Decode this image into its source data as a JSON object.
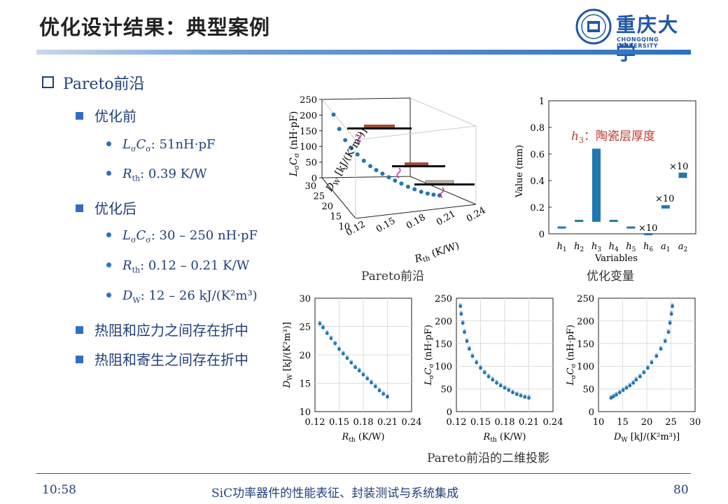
{
  "slide": {
    "title": "优化设计结果：典型案例",
    "logo": {
      "cn": "重庆大学",
      "en": "CHONGQING UNIVERSITY"
    },
    "time": "10:58",
    "footer": "SiC功率器件的性能表征、封装测试与系统集成",
    "page": "80"
  },
  "bullets": {
    "l0": "Pareto前沿",
    "before": "优化前",
    "before_lc": ": 51nH·pF",
    "before_rth": ": 0.39 K/W",
    "after": "优化后",
    "after_lc": ": 30 – 250 nH·pF",
    "after_rth": ": 0.12 – 0.21 K/W",
    "after_dw": ": 12 – 26 kJ/(K²m³)",
    "tradeoff1": "热阻和应力之间存在折中",
    "tradeoff2": "热阻和寄生之间存在折中"
  },
  "captions": {
    "pareto3d": "Pareto前沿",
    "vars": "优化变量",
    "proj": "Pareto前沿的二维投影"
  },
  "colors": {
    "accent": "#2e6fc4",
    "data": "#1f77b4",
    "text": "#1f3f7a",
    "annotation": "#c0392b"
  },
  "chart_data": [
    {
      "id": "pareto3d",
      "type": "scatter",
      "title": "",
      "xlabel": "R_th (K/W)",
      "ylabel": "D_W [kJ/(K²m³)]",
      "zlabel": "L_σ C_σ (nH·pF)",
      "x_ticks": [
        "0.12",
        "0.15",
        "0.18",
        "0.21",
        "0.24"
      ],
      "y_ticks": [
        "10",
        "15",
        "20",
        "25",
        "30"
      ],
      "z_ticks": [
        "0",
        "50",
        "100",
        "150",
        "200",
        "250"
      ],
      "points": [
        {
          "rth": 0.125,
          "dw": 25.5,
          "lc": 230
        },
        {
          "rth": 0.13,
          "dw": 24.5,
          "lc": 190
        },
        {
          "rth": 0.135,
          "dw": 23.5,
          "lc": 160
        },
        {
          "rth": 0.14,
          "dw": 22.5,
          "lc": 140
        },
        {
          "rth": 0.145,
          "dw": 21.5,
          "lc": 125
        },
        {
          "rth": 0.15,
          "dw": 20.5,
          "lc": 110
        },
        {
          "rth": 0.155,
          "dw": 19.5,
          "lc": 98
        },
        {
          "rth": 0.16,
          "dw": 18.8,
          "lc": 88
        },
        {
          "rth": 0.165,
          "dw": 18.0,
          "lc": 80
        },
        {
          "rth": 0.17,
          "dw": 17.2,
          "lc": 72
        },
        {
          "rth": 0.175,
          "dw": 16.5,
          "lc": 64
        },
        {
          "rth": 0.18,
          "dw": 15.8,
          "lc": 57
        },
        {
          "rth": 0.185,
          "dw": 15.0,
          "lc": 50
        },
        {
          "rth": 0.19,
          "dw": 14.3,
          "lc": 44
        },
        {
          "rth": 0.195,
          "dw": 13.6,
          "lc": 38
        },
        {
          "rth": 0.2,
          "dw": 13.0,
          "lc": 34
        },
        {
          "rth": 0.205,
          "dw": 12.6,
          "lc": 31
        },
        {
          "rth": 0.21,
          "dw": 12.2,
          "lc": 29
        }
      ]
    },
    {
      "id": "vars",
      "type": "bar",
      "xlabel": "Variables",
      "ylabel": "Value (mm)",
      "ylim": [
        0,
        1
      ],
      "y_ticks": [
        "0",
        "0.2",
        "0.4",
        "0.6",
        "0.8",
        "1"
      ],
      "categories": [
        "h1",
        "h2",
        "h3",
        "h4",
        "h5",
        "h6",
        "a1",
        "a2"
      ],
      "bars": [
        {
          "lo": 0.045,
          "hi": 0.055
        },
        {
          "lo": 0.095,
          "hi": 0.105
        },
        {
          "lo": 0.09,
          "hi": 0.64
        },
        {
          "lo": 0.095,
          "hi": 0.105
        },
        {
          "lo": 0.045,
          "hi": 0.055
        },
        {
          "lo": 0.0,
          "hi": 0.005
        },
        {
          "lo": 0.19,
          "hi": 0.215
        },
        {
          "lo": 0.42,
          "hi": 0.46
        }
      ],
      "annotation": "陶瓷层厚度",
      "annotation_var": "h",
      "annotation_sub": "3",
      "scale_marks": [
        "×10",
        "×10",
        "×10"
      ]
    },
    {
      "id": "proj1",
      "type": "scatter",
      "xlabel": "R_th (K/W)",
      "ylabel": "D_W [kJ/(K²m³)]",
      "xlim": [
        0.12,
        0.24
      ],
      "ylim": [
        10,
        30
      ],
      "x_ticks": [
        "0.12",
        "0.15",
        "0.18",
        "0.21",
        "0.24"
      ],
      "y_ticks": [
        "10",
        "15",
        "20",
        "25",
        "30"
      ],
      "points": [
        [
          0.126,
          25.5
        ],
        [
          0.13,
          24.8
        ],
        [
          0.135,
          23.8
        ],
        [
          0.14,
          22.9
        ],
        [
          0.145,
          22.0
        ],
        [
          0.15,
          21.0
        ],
        [
          0.155,
          20.2
        ],
        [
          0.16,
          19.4
        ],
        [
          0.165,
          18.6
        ],
        [
          0.17,
          17.8
        ],
        [
          0.175,
          17.2
        ],
        [
          0.18,
          16.5
        ],
        [
          0.185,
          15.8
        ],
        [
          0.19,
          15.1
        ],
        [
          0.195,
          14.4
        ],
        [
          0.2,
          13.7
        ],
        [
          0.205,
          13.1
        ],
        [
          0.21,
          12.6
        ]
      ]
    },
    {
      "id": "proj2",
      "type": "scatter",
      "xlabel": "R_th (K/W)",
      "ylabel": "L_σ C_σ (nH·pF)",
      "xlim": [
        0.12,
        0.24
      ],
      "ylim": [
        0,
        250
      ],
      "x_ticks": [
        "0.12",
        "0.15",
        "0.18",
        "0.21",
        "0.24"
      ],
      "y_ticks": [
        "0",
        "50",
        "100",
        "150",
        "200",
        "250"
      ],
      "points": [
        [
          0.125,
          232
        ],
        [
          0.126,
          215
        ],
        [
          0.128,
          195
        ],
        [
          0.13,
          175
        ],
        [
          0.133,
          155
        ],
        [
          0.136,
          138
        ],
        [
          0.14,
          122
        ],
        [
          0.145,
          108
        ],
        [
          0.15,
          96
        ],
        [
          0.155,
          86
        ],
        [
          0.16,
          77
        ],
        [
          0.165,
          70
        ],
        [
          0.17,
          63
        ],
        [
          0.175,
          57
        ],
        [
          0.18,
          52
        ],
        [
          0.185,
          47
        ],
        [
          0.19,
          42
        ],
        [
          0.195,
          38
        ],
        [
          0.2,
          35
        ],
        [
          0.205,
          32
        ],
        [
          0.21,
          30
        ]
      ]
    },
    {
      "id": "proj3",
      "type": "scatter",
      "xlabel": "D_W [kJ/(K²m³)]",
      "ylabel": "L_σ C_σ (nH·pF)",
      "xlim": [
        10,
        30
      ],
      "ylim": [
        0,
        250
      ],
      "x_ticks": [
        "10",
        "15",
        "20",
        "25",
        "30"
      ],
      "y_ticks": [
        "0",
        "50",
        "100",
        "150",
        "200",
        "250"
      ],
      "points": [
        [
          12.6,
          30
        ],
        [
          13.1,
          33
        ],
        [
          13.7,
          37
        ],
        [
          14.4,
          42
        ],
        [
          15.1,
          47
        ],
        [
          15.8,
          52
        ],
        [
          16.5,
          57
        ],
        [
          17.2,
          63
        ],
        [
          17.8,
          70
        ],
        [
          18.6,
          77
        ],
        [
          19.4,
          86
        ],
        [
          20.2,
          96
        ],
        [
          21.0,
          108
        ],
        [
          22.0,
          122
        ],
        [
          22.9,
          138
        ],
        [
          23.8,
          155
        ],
        [
          24.5,
          175
        ],
        [
          24.8,
          195
        ],
        [
          25.1,
          215
        ],
        [
          25.3,
          232
        ]
      ]
    }
  ]
}
